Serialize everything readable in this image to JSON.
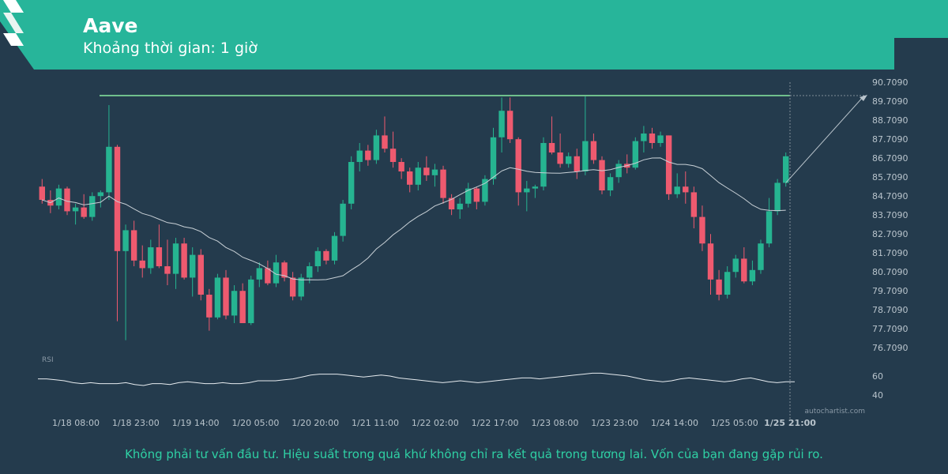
{
  "header": {
    "title": "Aave",
    "subtitle": "Khoảng thời gian: 1 giờ",
    "accent_color": "#27b59a",
    "logo_icon": "autochartist-logo-icon"
  },
  "footer": {
    "disclaimer": "Không phải tư vấn đầu tư. Hiệu suất trong quá khứ không chỉ ra kết quả trong tương lai. Vốn của bạn đang gặp rủi ro."
  },
  "watermark": "autochartist.com",
  "chart_data": {
    "type": "candlestick",
    "colors": {
      "up": "#26b491",
      "down": "#ee5a6f",
      "background": "#243b4d",
      "resistance": "#6fbf8c",
      "ma": "#c8d0d6"
    },
    "price_axis": {
      "ticks": [
        "90.7090",
        "89.7090",
        "88.7090",
        "87.7090",
        "86.7090",
        "85.7090",
        "84.7090",
        "83.7090",
        "82.7090",
        "81.7090",
        "80.7090",
        "79.7090",
        "78.7090",
        "77.7090",
        "76.7090"
      ],
      "ylim": [
        76.709,
        90.709
      ]
    },
    "time_axis": {
      "ticks": [
        "1/18 08:00",
        "1/18 23:00",
        "1/19 14:00",
        "1/20 05:00",
        "1/20 20:00",
        "1/21 11:00",
        "1/22 02:00",
        "1/22 17:00",
        "1/23 08:00",
        "1/23 23:00",
        "1/24 14:00",
        "1/25 05:00",
        "1/25 21:00"
      ],
      "highlight": "1/25 21:00"
    },
    "resistance_level": 90.0,
    "projection_target": 90.0,
    "rsi": {
      "label": "RSI",
      "ticks": [
        "60",
        "40"
      ],
      "values": [
        57,
        57,
        56,
        55,
        53,
        52,
        53,
        52,
        52,
        52,
        53,
        51,
        50,
        52,
        52,
        51,
        53,
        54,
        53,
        52,
        52,
        53,
        52,
        52,
        53,
        55,
        55,
        55,
        56,
        57,
        59,
        61,
        62,
        62,
        62,
        61,
        60,
        59,
        60,
        61,
        60,
        58,
        57,
        56,
        55,
        54,
        53,
        54,
        55,
        54,
        53,
        54,
        55,
        56,
        57,
        58,
        58,
        57,
        58,
        59,
        60,
        61,
        62,
        63,
        63,
        62,
        61,
        60,
        58,
        56,
        55,
        54,
        55,
        57,
        58,
        57,
        56,
        55,
        54,
        55,
        57,
        58,
        56,
        54,
        53,
        54,
        54
      ]
    },
    "candles": [
      [
        85.2,
        85.6,
        84.3,
        84.5
      ],
      [
        84.5,
        85.0,
        83.8,
        84.2
      ],
      [
        84.2,
        85.3,
        84.0,
        85.1
      ],
      [
        85.1,
        85.2,
        83.7,
        83.9
      ],
      [
        83.9,
        84.3,
        83.2,
        84.1
      ],
      [
        84.1,
        84.8,
        83.5,
        83.6
      ],
      [
        83.6,
        84.9,
        83.4,
        84.7
      ],
      [
        84.7,
        85.0,
        84.1,
        84.9
      ],
      [
        84.9,
        89.5,
        84.5,
        87.3
      ],
      [
        87.3,
        87.4,
        78.1,
        81.8
      ],
      [
        81.8,
        83.2,
        77.1,
        82.9
      ],
      [
        82.9,
        83.4,
        81.0,
        81.3
      ],
      [
        81.3,
        82.1,
        80.4,
        80.9
      ],
      [
        80.9,
        82.4,
        80.6,
        82.0
      ],
      [
        82.0,
        83.2,
        80.9,
        81.0
      ],
      [
        81.0,
        82.4,
        80.0,
        80.6
      ],
      [
        80.6,
        82.5,
        79.8,
        82.2
      ],
      [
        82.2,
        82.5,
        80.3,
        80.4
      ],
      [
        80.4,
        82.0,
        79.4,
        81.6
      ],
      [
        81.6,
        81.9,
        79.2,
        79.5
      ],
      [
        79.5,
        79.8,
        77.6,
        78.3
      ],
      [
        78.3,
        80.6,
        78.2,
        80.4
      ],
      [
        80.4,
        80.8,
        78.2,
        78.4
      ],
      [
        78.4,
        80.0,
        78.0,
        79.7
      ],
      [
        79.7,
        80.1,
        78.0,
        78.0
      ],
      [
        78.0,
        80.5,
        77.9,
        80.3
      ],
      [
        80.3,
        81.2,
        79.9,
        80.9
      ],
      [
        80.9,
        81.3,
        80.0,
        80.1
      ],
      [
        80.1,
        81.6,
        79.9,
        81.2
      ],
      [
        81.2,
        81.3,
        80.2,
        80.4
      ],
      [
        80.4,
        80.7,
        79.2,
        79.4
      ],
      [
        79.4,
        80.6,
        79.2,
        80.4
      ],
      [
        80.4,
        81.2,
        80.1,
        81.0
      ],
      [
        81.0,
        82.0,
        80.7,
        81.8
      ],
      [
        81.8,
        81.9,
        81.1,
        81.3
      ],
      [
        81.3,
        82.8,
        81.1,
        82.6
      ],
      [
        82.6,
        84.5,
        82.3,
        84.3
      ],
      [
        84.3,
        86.8,
        84.0,
        86.5
      ],
      [
        86.5,
        87.5,
        86.0,
        87.1
      ],
      [
        87.1,
        87.4,
        86.3,
        86.6
      ],
      [
        86.6,
        88.2,
        86.4,
        87.9
      ],
      [
        87.9,
        88.9,
        87.0,
        87.2
      ],
      [
        87.2,
        88.1,
        86.2,
        86.5
      ],
      [
        86.5,
        86.7,
        85.6,
        86.0
      ],
      [
        86.0,
        86.2,
        84.9,
        85.3
      ],
      [
        85.3,
        86.5,
        85.0,
        86.2
      ],
      [
        86.2,
        86.8,
        85.5,
        85.8
      ],
      [
        85.8,
        86.4,
        85.2,
        86.1
      ],
      [
        86.1,
        86.3,
        84.3,
        84.6
      ],
      [
        84.6,
        84.8,
        83.7,
        84.0
      ],
      [
        84.0,
        84.6,
        83.5,
        84.3
      ],
      [
        84.3,
        85.4,
        84.1,
        85.1
      ],
      [
        85.1,
        85.2,
        84.0,
        84.4
      ],
      [
        84.4,
        85.8,
        84.2,
        85.6
      ],
      [
        85.6,
        88.3,
        85.3,
        87.8
      ],
      [
        87.8,
        89.9,
        87.0,
        89.2
      ],
      [
        89.2,
        89.9,
        87.5,
        87.7
      ],
      [
        87.7,
        87.8,
        84.2,
        84.9
      ],
      [
        84.9,
        85.5,
        83.9,
        85.1
      ],
      [
        85.1,
        85.3,
        84.6,
        85.2
      ],
      [
        85.2,
        87.8,
        85.0,
        87.5
      ],
      [
        87.5,
        88.9,
        86.9,
        87.0
      ],
      [
        87.0,
        88.0,
        86.2,
        86.4
      ],
      [
        86.4,
        87.0,
        86.2,
        86.8
      ],
      [
        86.8,
        87.2,
        85.6,
        86.0
      ],
      [
        86.0,
        90.0,
        85.8,
        87.6
      ],
      [
        87.6,
        88.0,
        86.4,
        86.6
      ],
      [
        86.6,
        86.8,
        84.8,
        85.0
      ],
      [
        85.0,
        85.9,
        84.7,
        85.7
      ],
      [
        85.7,
        86.6,
        85.4,
        86.4
      ],
      [
        86.4,
        86.9,
        85.9,
        86.2
      ],
      [
        86.2,
        87.8,
        86.1,
        87.6
      ],
      [
        87.6,
        88.4,
        87.0,
        88.0
      ],
      [
        88.0,
        88.3,
        87.2,
        87.5
      ],
      [
        87.5,
        88.1,
        87.3,
        87.9
      ],
      [
        87.9,
        87.9,
        84.5,
        84.8
      ],
      [
        84.8,
        85.9,
        84.6,
        85.2
      ],
      [
        85.2,
        86.0,
        84.3,
        84.9
      ],
      [
        84.9,
        85.2,
        83.0,
        83.6
      ],
      [
        83.6,
        84.2,
        81.8,
        82.2
      ],
      [
        82.2,
        82.7,
        79.5,
        80.3
      ],
      [
        80.3,
        80.8,
        79.2,
        79.5
      ],
      [
        79.5,
        81.0,
        79.3,
        80.7
      ],
      [
        80.7,
        81.6,
        80.4,
        81.4
      ],
      [
        81.4,
        82.0,
        80.1,
        80.2
      ],
      [
        80.2,
        81.3,
        80.0,
        80.8
      ],
      [
        80.8,
        82.4,
        80.6,
        82.2
      ],
      [
        82.2,
        84.6,
        82.0,
        83.9
      ],
      [
        83.9,
        85.6,
        83.7,
        85.4
      ],
      [
        85.4,
        87.0,
        85.2,
        86.8
      ]
    ]
  }
}
